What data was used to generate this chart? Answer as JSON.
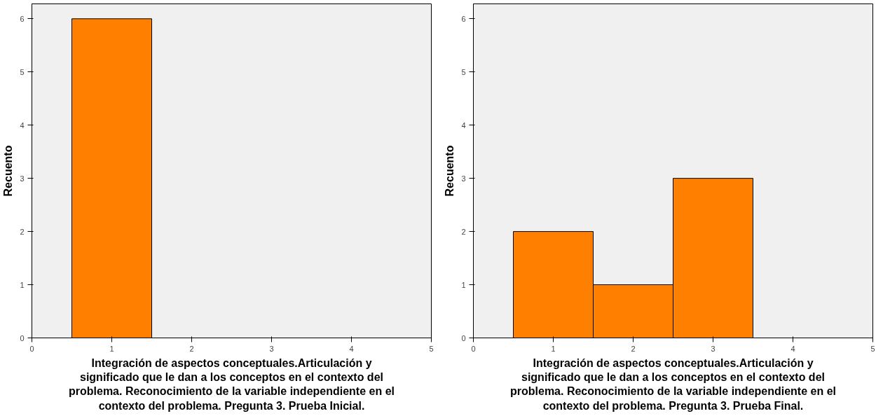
{
  "chart_data": [
    {
      "type": "histogram",
      "bins": [
        0.5,
        1.5
      ],
      "values": [
        6
      ],
      "color": "#ff8000",
      "xlim": [
        0,
        5
      ],
      "ylim": [
        0,
        6.28
      ],
      "xticks": [
        0,
        1,
        2,
        3,
        4,
        5
      ],
      "yticks": [
        0,
        1,
        2,
        3,
        4,
        5,
        6
      ],
      "ylabel": "Recuento",
      "xlabel": "Integración de aspectos conceptuales.Articulación y significado que le dan a los conceptos en el contexto del problema. Reconocimiento de la variable independiente en el contexto del problema. Pregunta 3. Prueba Inicial.",
      "grid": false
    },
    {
      "type": "histogram",
      "bins": [
        0.5,
        1.5,
        2.5,
        3.5
      ],
      "values": [
        2,
        1,
        3
      ],
      "color": "#ff8000",
      "xlim": [
        0,
        5
      ],
      "ylim": [
        0,
        6.28
      ],
      "xticks": [
        0,
        1,
        2,
        3,
        4,
        5
      ],
      "yticks": [
        0,
        1,
        2,
        3,
        4,
        5,
        6
      ],
      "ylabel": "Recuento",
      "xlabel": "Integración de aspectos conceptuales.Articulación y significado que le dan a los conceptos en el contexto del problema. Reconocimiento de la variable independiente en el contexto del problema. Pregunta 3. Prueba Final.",
      "grid": false
    }
  ]
}
